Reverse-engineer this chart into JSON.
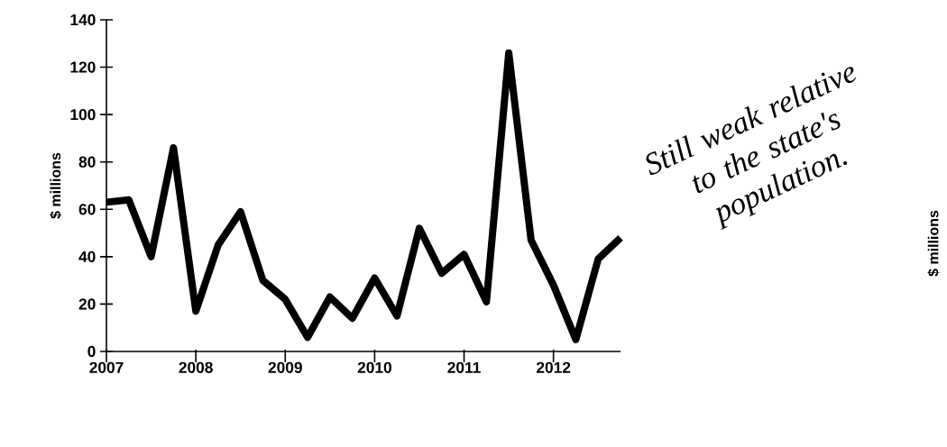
{
  "chart_data": {
    "type": "line",
    "ylabel": "$ millions",
    "annotations": [
      "Still weak relative to the state's population.",
      "$ millions"
    ],
    "x": [
      2007,
      2007.25,
      2007.5,
      2007.75,
      2008,
      2008.25,
      2008.5,
      2008.75,
      2009,
      2009.25,
      2009.5,
      2009.75,
      2010,
      2010.25,
      2010.5,
      2010.75,
      2011,
      2011.25,
      2011.5,
      2011.75,
      2012,
      2012.25,
      2012.5,
      2012.75
    ],
    "series": [
      {
        "color": "#000000",
        "values": [
          63,
          64,
          40,
          86,
          17,
          45,
          59,
          30,
          22,
          6,
          23,
          14,
          31,
          15,
          52,
          33,
          41,
          21,
          126,
          47,
          28,
          5,
          39,
          48
        ]
      }
    ],
    "xlim": [
      2007,
      2012.75
    ],
    "xticks": [
      2007,
      2008,
      2009,
      2010,
      2011,
      2012
    ],
    "ylim": [
      0,
      140
    ],
    "yticks": [
      0,
      20,
      40,
      60,
      80,
      100,
      120,
      140
    ],
    "grid": false
  }
}
